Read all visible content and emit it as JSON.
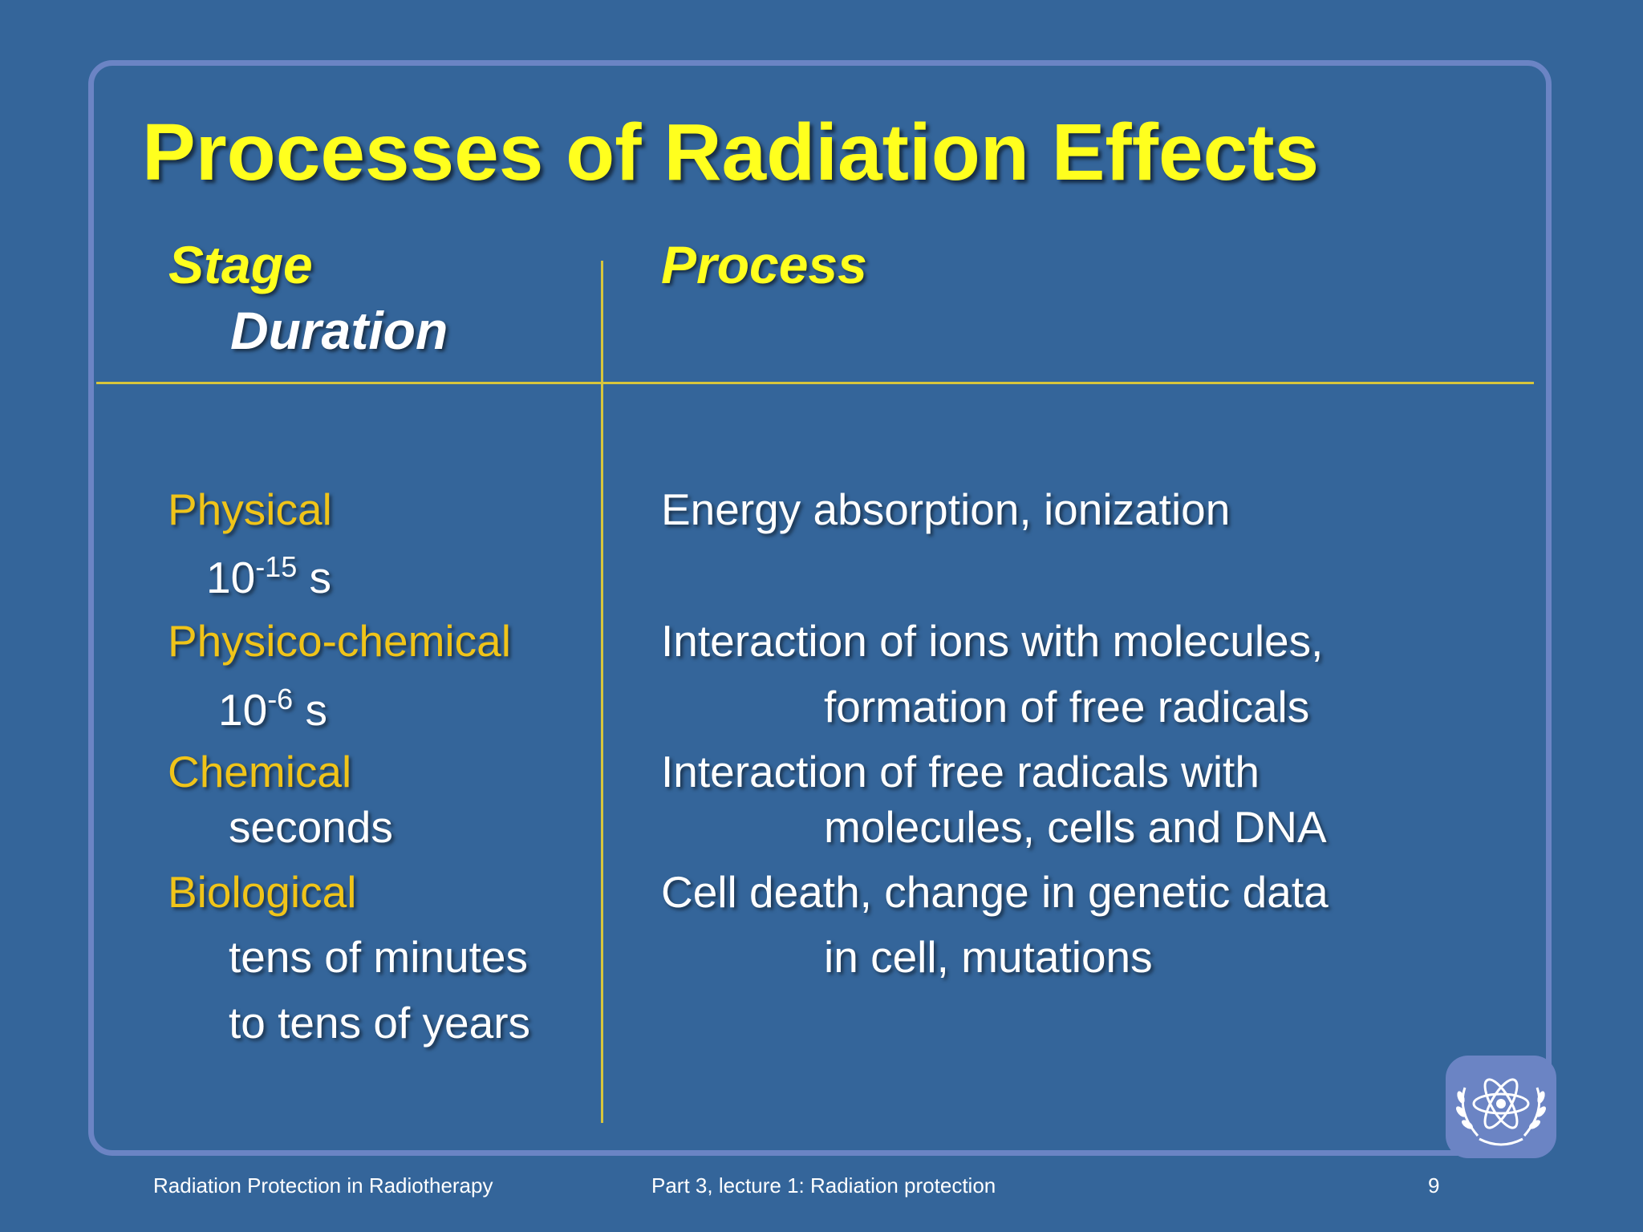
{
  "title": "Processes of Radiation Effects",
  "headers": {
    "stage": "Stage",
    "duration": "Duration",
    "process": "Process"
  },
  "stages": [
    {
      "name": "Physical",
      "duration": {
        "base": "10",
        "exp": "-15",
        "unit": " s"
      },
      "process": [
        "Energy absorption, ionization"
      ]
    },
    {
      "name": "Physico-chemical",
      "duration": {
        "base": "10",
        "exp": "-6",
        "unit": " s"
      },
      "process": [
        "Interaction of ions with molecules,",
        "formation of free radicals"
      ]
    },
    {
      "name": "Chemical",
      "duration_text": "seconds",
      "process": [
        "Interaction of free radicals with",
        "molecules, cells and DNA"
      ]
    },
    {
      "name": "Biological",
      "duration_lines": [
        "tens of minutes",
        "to tens of years"
      ],
      "process": [
        "Cell death, change in genetic data",
        "in cell, mutations"
      ]
    }
  ],
  "footer": {
    "left": "Radiation Protection in Radiotherapy",
    "center": "Part 3, lecture 1: Radiation protection",
    "page": "9"
  },
  "colors": {
    "background": "#34659a",
    "frame": "#6b84c4",
    "title": "#ffff1e",
    "stage_label": "#f0c419",
    "rule": "#d7c53c"
  },
  "logo_icon": "iaea-atom-laurel-icon"
}
